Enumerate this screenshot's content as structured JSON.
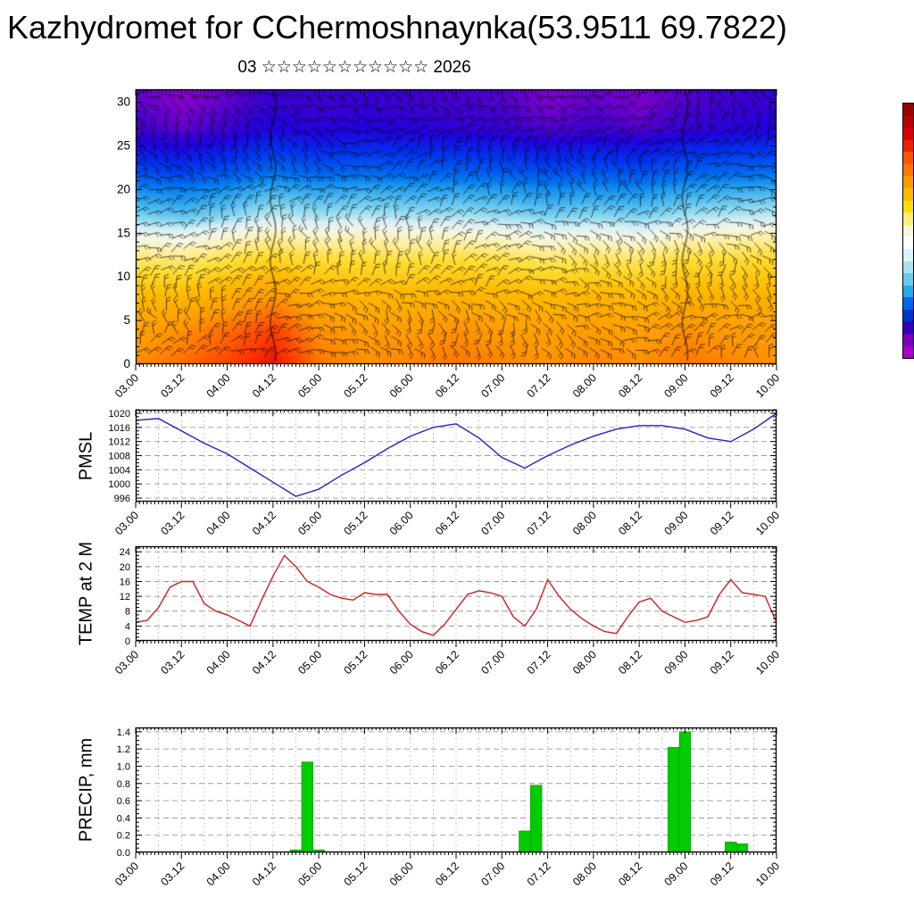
{
  "page": {
    "title": "Kazhydromet for CChermoshnaynka(53.9511 69.7822)",
    "date_header": "03 ☆☆☆☆☆☆☆☆☆☆☆ 2026",
    "background": "#ffffff"
  },
  "x_axis": {
    "tick_labels": [
      "03.00",
      "03.12",
      "04.00",
      "04.12",
      "05.00",
      "05.12",
      "06.00",
      "06.12",
      "07.00",
      "07.12",
      "08.00",
      "08.12",
      "09.00",
      "09.12",
      "10.00"
    ],
    "hours_span": 168,
    "label_step_hours": 12
  },
  "colorbar": {
    "colors": [
      "#990000",
      "#bb0000",
      "#dd0000",
      "#ee2200",
      "#ff5500",
      "#ff7700",
      "#ff9900",
      "#ffbb00",
      "#ffdd00",
      "#ffee77",
      "#f8f8d8",
      "#ffffff",
      "#ddf2f8",
      "#aae2f2",
      "#66ccee",
      "#22aaee",
      "#0066ee",
      "#0033cc",
      "#3300bb",
      "#7700bb",
      "#aa00cc"
    ]
  },
  "chart_data": [
    {
      "id": "upper-air-profile",
      "type": "heatmap",
      "label": "",
      "ylim": [
        0,
        31.5
      ],
      "yticks": [
        0,
        5,
        10,
        15,
        20,
        25,
        30
      ],
      "yminor": 1,
      "heights": [
        30,
        27,
        25,
        22,
        20,
        17,
        15,
        12,
        8,
        4,
        0
      ],
      "grid": [
        [
          0.03,
          0.0,
          0.03,
          0.07,
          0.06,
          0.07,
          0.06,
          0.05,
          0.04,
          0.01,
          0.03,
          0.01,
          0.04,
          0.06,
          0.07
        ],
        [
          0.06,
          0.03,
          0.06,
          0.11,
          0.09,
          0.1,
          0.09,
          0.08,
          0.07,
          0.04,
          0.06,
          0.04,
          0.07,
          0.09,
          0.1
        ],
        [
          0.12,
          0.1,
          0.13,
          0.17,
          0.15,
          0.16,
          0.15,
          0.15,
          0.14,
          0.12,
          0.13,
          0.12,
          0.15,
          0.16,
          0.17
        ],
        [
          0.22,
          0.2,
          0.23,
          0.27,
          0.25,
          0.26,
          0.25,
          0.25,
          0.24,
          0.22,
          0.23,
          0.22,
          0.25,
          0.26,
          0.27
        ],
        [
          0.31,
          0.29,
          0.32,
          0.36,
          0.34,
          0.35,
          0.34,
          0.34,
          0.33,
          0.31,
          0.32,
          0.31,
          0.34,
          0.35,
          0.36
        ],
        [
          0.41,
          0.39,
          0.42,
          0.46,
          0.44,
          0.45,
          0.44,
          0.44,
          0.43,
          0.41,
          0.42,
          0.41,
          0.44,
          0.45,
          0.46
        ],
        [
          0.5,
          0.49,
          0.52,
          0.55,
          0.53,
          0.54,
          0.53,
          0.53,
          0.52,
          0.5,
          0.51,
          0.5,
          0.53,
          0.54,
          0.55
        ],
        [
          0.6,
          0.59,
          0.62,
          0.65,
          0.63,
          0.63,
          0.62,
          0.63,
          0.62,
          0.6,
          0.61,
          0.6,
          0.63,
          0.63,
          0.64
        ],
        [
          0.7,
          0.7,
          0.73,
          0.77,
          0.72,
          0.71,
          0.71,
          0.72,
          0.71,
          0.7,
          0.71,
          0.7,
          0.72,
          0.71,
          0.72
        ],
        [
          0.76,
          0.79,
          0.84,
          0.9,
          0.79,
          0.77,
          0.77,
          0.79,
          0.77,
          0.76,
          0.77,
          0.76,
          0.79,
          0.77,
          0.77
        ],
        [
          0.8,
          0.84,
          0.9,
          0.97,
          0.83,
          0.79,
          0.81,
          0.83,
          0.81,
          0.79,
          0.81,
          0.79,
          0.83,
          0.81,
          0.79
        ]
      ],
      "colormap": [
        [
          0.0,
          "#8800cc"
        ],
        [
          0.05,
          "#4400cc"
        ],
        [
          0.1,
          "#2200dd"
        ],
        [
          0.18,
          "#0033ee"
        ],
        [
          0.28,
          "#0077ee"
        ],
        [
          0.35,
          "#33aaee"
        ],
        [
          0.42,
          "#88d8f0"
        ],
        [
          0.47,
          "#d5eef5"
        ],
        [
          0.52,
          "#f6f6e4"
        ],
        [
          0.57,
          "#ffee99"
        ],
        [
          0.63,
          "#ffdd33"
        ],
        [
          0.7,
          "#ffbb00"
        ],
        [
          0.78,
          "#ff9900"
        ],
        [
          0.85,
          "#ff6600"
        ],
        [
          0.92,
          "#ff3300"
        ],
        [
          1.0,
          "#cc0000"
        ]
      ],
      "streak_hours": [
        36,
        144
      ],
      "barb_spacing": 13,
      "barb_length": 13
    },
    {
      "id": "pmsl",
      "type": "line",
      "label": "PMSL",
      "color": "#2222cc",
      "ylim": [
        995,
        1021
      ],
      "yticks": [
        996,
        1000,
        1004,
        1008,
        1012,
        1016,
        1020
      ],
      "yminor": 1,
      "x_step_hours": 6,
      "values": [
        1018,
        1018.5,
        1015,
        1011.5,
        1008.5,
        1004.5,
        1000.5,
        996.5,
        998.5,
        1002.5,
        1006,
        1010,
        1013.5,
        1016,
        1017,
        1013,
        1007.5,
        1004.5,
        1008,
        1011,
        1013.5,
        1015.5,
        1016.5,
        1016.5,
        1015.5,
        1013,
        1012,
        1015.5,
        1020
      ]
    },
    {
      "id": "temp2m",
      "type": "line",
      "label": "TEMP at 2 M",
      "color": "#cc2222",
      "ylim": [
        0,
        25.5
      ],
      "yticks": [
        0,
        4,
        8,
        12,
        16,
        20,
        24
      ],
      "yminor": 1,
      "x_step_hours": 3,
      "values": [
        5,
        5.5,
        9,
        14.5,
        16,
        16,
        10,
        8,
        7,
        5.5,
        4,
        11,
        17.5,
        23,
        20,
        16,
        14.5,
        12.5,
        11.5,
        11,
        13,
        12.5,
        12.5,
        8,
        4.5,
        2.5,
        1.5,
        4.5,
        8.5,
        12.5,
        13.5,
        13,
        12,
        6.5,
        4,
        8.5,
        16.5,
        12,
        8.5,
        6,
        4,
        2.5,
        2,
        6.5,
        10.5,
        11.5,
        8,
        6.5,
        5,
        5.5,
        6.5,
        12.5,
        16.5,
        13,
        12.5,
        12,
        5
      ]
    },
    {
      "id": "precip",
      "type": "bar",
      "label": "PRECIP, mm",
      "color": "#00cc00",
      "ylim": [
        0,
        1.45
      ],
      "yticks": [
        0,
        0.2,
        0.4,
        0.6,
        0.8,
        1,
        1.2,
        1.4
      ],
      "ydec": 1,
      "yminor": 0.05,
      "bar_width_hours": 3,
      "points": [
        {
          "t": 42,
          "v": 0.03
        },
        {
          "t": 45,
          "v": 1.05
        },
        {
          "t": 48,
          "v": 0.03
        },
        {
          "t": 102,
          "v": 0.25
        },
        {
          "t": 105,
          "v": 0.78
        },
        {
          "t": 141,
          "v": 1.22
        },
        {
          "t": 144,
          "v": 1.4
        },
        {
          "t": 156,
          "v": 0.12
        },
        {
          "t": 159,
          "v": 0.1
        }
      ]
    }
  ]
}
